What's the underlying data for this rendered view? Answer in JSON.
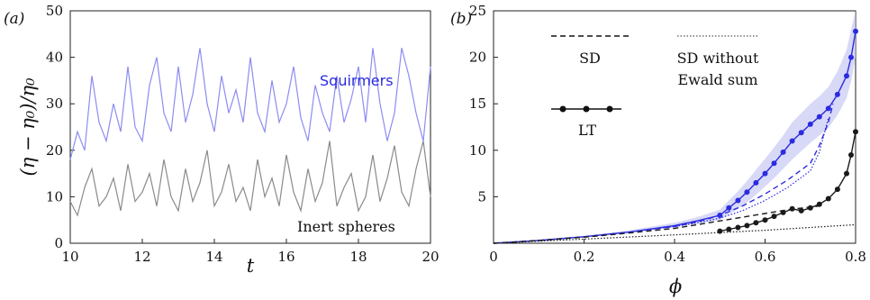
{
  "colors": {
    "squirmer": "#2b2be0",
    "squirmer_light": "#8c8cf2",
    "inert": "#1a1a1a",
    "inert_light": "#8a8a8a",
    "band": "#c7c9f3"
  },
  "chart_data": [
    {
      "type": "line",
      "panel_label": "(a)",
      "xlabel": "t",
      "ylabel": "(η − η₀)/η₀",
      "xlim": [
        10,
        20
      ],
      "ylim": [
        0,
        50
      ],
      "xticks": [
        10,
        12,
        14,
        16,
        18,
        20
      ],
      "yticks": [
        0,
        10,
        20,
        30,
        40,
        50
      ],
      "annotations": [
        "Squirmers",
        "Inert spheres"
      ],
      "series": [
        {
          "name": "Squirmers",
          "color": "#8c8cf2",
          "x": [
            10.0,
            10.2,
            10.4,
            10.6,
            10.8,
            11.0,
            11.2,
            11.4,
            11.6,
            11.8,
            12.0,
            12.2,
            12.4,
            12.6,
            12.8,
            13.0,
            13.2,
            13.4,
            13.6,
            13.8,
            14.0,
            14.2,
            14.4,
            14.6,
            14.8,
            15.0,
            15.2,
            15.4,
            15.6,
            15.8,
            16.0,
            16.2,
            16.4,
            16.6,
            16.8,
            17.0,
            17.2,
            17.4,
            17.6,
            17.8,
            18.0,
            18.2,
            18.4,
            18.6,
            18.8,
            19.0,
            19.2,
            19.4,
            19.6,
            19.8,
            20.0
          ],
          "y": [
            18,
            24,
            20,
            36,
            26,
            22,
            30,
            24,
            38,
            25,
            22,
            34,
            40,
            28,
            24,
            38,
            26,
            32,
            42,
            30,
            24,
            36,
            28,
            33,
            26,
            40,
            28,
            24,
            35,
            26,
            30,
            38,
            27,
            22,
            34,
            28,
            24,
            36,
            26,
            31,
            38,
            26,
            42,
            30,
            22,
            28,
            42,
            36,
            28,
            22,
            38
          ]
        },
        {
          "name": "Inert spheres",
          "color": "#8a8a8a",
          "x": [
            10.0,
            10.2,
            10.4,
            10.6,
            10.8,
            11.0,
            11.2,
            11.4,
            11.6,
            11.8,
            12.0,
            12.2,
            12.4,
            12.6,
            12.8,
            13.0,
            13.2,
            13.4,
            13.6,
            13.8,
            14.0,
            14.2,
            14.4,
            14.6,
            14.8,
            15.0,
            15.2,
            15.4,
            15.6,
            15.8,
            16.0,
            16.2,
            16.4,
            16.6,
            16.8,
            17.0,
            17.2,
            17.4,
            17.6,
            17.8,
            18.0,
            18.2,
            18.4,
            18.6,
            18.8,
            19.0,
            19.2,
            19.4,
            19.6,
            19.8,
            20.0
          ],
          "y": [
            9,
            6,
            12,
            16,
            8,
            10,
            14,
            7,
            17,
            9,
            11,
            15,
            8,
            18,
            10,
            7,
            16,
            9,
            13,
            20,
            8,
            11,
            17,
            9,
            12,
            7,
            18,
            10,
            14,
            8,
            19,
            11,
            7,
            16,
            9,
            13,
            22,
            8,
            12,
            15,
            7,
            10,
            19,
            9,
            14,
            21,
            11,
            8,
            16,
            22,
            10
          ]
        }
      ]
    },
    {
      "type": "line",
      "panel_label": "(b)",
      "xlabel": "ϕ",
      "ylabel": "",
      "xlim": [
        0,
        0.8
      ],
      "ylim": [
        0,
        25
      ],
      "xticks": [
        0,
        0.2,
        0.4,
        0.6,
        0.8
      ],
      "yticks": [
        5,
        10,
        15,
        20,
        25
      ],
      "xtick_labels": [
        "0",
        "0.2",
        "0.4",
        "0.6",
        "0.8"
      ],
      "ytick_labels": [
        "5",
        "10",
        "15",
        "20",
        "25"
      ],
      "legend": {
        "sd": "SD",
        "sd_no_ewald_line1": "SD without",
        "sd_no_ewald_line2": "Ewald sum",
        "lt": "LT"
      },
      "series": [
        {
          "style": "LT",
          "color": "#2b2be0",
          "x": [
            0.0,
            0.1,
            0.2,
            0.3,
            0.4,
            0.45,
            0.5,
            0.52,
            0.54,
            0.56,
            0.58,
            0.6,
            0.62,
            0.64,
            0.66,
            0.68,
            0.7,
            0.72,
            0.74,
            0.76,
            0.78,
            0.79,
            0.8
          ],
          "y": [
            0.0,
            0.3,
            0.7,
            1.2,
            1.9,
            2.4,
            3.0,
            3.8,
            4.6,
            5.5,
            6.5,
            7.5,
            8.6,
            9.8,
            11.0,
            11.9,
            12.8,
            13.6,
            14.5,
            16.0,
            18.0,
            20.0,
            22.8
          ],
          "band": [
            [
              0.0,
              0.3,
              0.7,
              1.2,
              1.7,
              2.1,
              2.5,
              3.1,
              3.7,
              4.4,
              5.2,
              6.1,
              7.0,
              8.0,
              9.0,
              9.9,
              10.8,
              11.6,
              12.4,
              13.8,
              15.6,
              17.4,
              20.0
            ],
            [
              0.0,
              0.4,
              0.8,
              1.4,
              2.2,
              2.8,
              3.6,
              4.6,
              5.6,
              6.7,
              7.9,
              9.1,
              10.3,
              11.6,
              13.0,
              14.0,
              15.0,
              15.8,
              16.8,
              18.5,
              20.8,
              23.0,
              25.0
            ]
          ]
        },
        {
          "style": "SD",
          "color": "#2b2be0",
          "x": [
            0.0,
            0.1,
            0.2,
            0.3,
            0.4,
            0.45,
            0.5,
            0.55,
            0.6,
            0.65,
            0.7,
            0.72,
            0.74,
            0.75
          ],
          "y": [
            0.0,
            0.3,
            0.7,
            1.2,
            1.8,
            2.3,
            3.0,
            4.0,
            5.3,
            6.8,
            8.6,
            10.5,
            13.0,
            15.0
          ]
        },
        {
          "style": "SD without Ewald sum",
          "color": "#2b2be0",
          "x": [
            0.0,
            0.1,
            0.2,
            0.3,
            0.4,
            0.45,
            0.5,
            0.55,
            0.6,
            0.65,
            0.7,
            0.72,
            0.74
          ],
          "y": [
            0.0,
            0.3,
            0.7,
            1.2,
            1.8,
            2.2,
            2.7,
            3.5,
            4.6,
            6.0,
            7.8,
            9.8,
            13.5
          ]
        },
        {
          "style": "LT",
          "color": "#1a1a1a",
          "x": [
            0.5,
            0.52,
            0.54,
            0.56,
            0.58,
            0.6,
            0.62,
            0.64,
            0.66,
            0.68,
            0.7,
            0.72,
            0.74,
            0.76,
            0.78,
            0.79,
            0.8
          ],
          "y": [
            1.3,
            1.5,
            1.7,
            1.9,
            2.2,
            2.5,
            2.9,
            3.3,
            3.7,
            3.5,
            3.8,
            4.2,
            4.8,
            5.8,
            7.5,
            9.5,
            12.0
          ]
        },
        {
          "style": "SD",
          "color": "#1a1a1a",
          "x": [
            0.0,
            0.1,
            0.2,
            0.3,
            0.4,
            0.45,
            0.5,
            0.55,
            0.6,
            0.65,
            0.7,
            0.72
          ],
          "y": [
            0.0,
            0.3,
            0.65,
            1.1,
            1.6,
            2.0,
            2.4,
            2.8,
            3.2,
            3.6,
            3.9,
            4.0
          ]
        },
        {
          "style": "SD without Ewald sum",
          "color": "#1a1a1a",
          "x": [
            0.0,
            0.2,
            0.4,
            0.6,
            0.8
          ],
          "y": [
            0.0,
            0.45,
            0.9,
            1.4,
            2.0
          ]
        }
      ]
    }
  ]
}
